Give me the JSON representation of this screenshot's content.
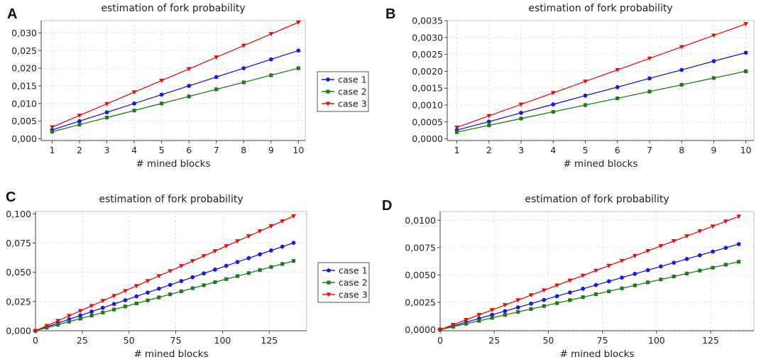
{
  "panels": [
    "A",
    "B",
    "C",
    "D"
  ],
  "legend": {
    "labels": [
      "case 1",
      "case 2",
      "case 3"
    ]
  },
  "colors": {
    "case 1": "#1a1ad8",
    "case 2": "#1f7a1f",
    "case 3": "#e01010",
    "grid": "#d9d9d9"
  },
  "chart_data": [
    {
      "panel": "A",
      "type": "line",
      "title": "estimation of fork probability",
      "xlabel": "# mined blocks",
      "ylabel": "",
      "xlim": [
        0.6,
        10.25
      ],
      "ylim": [
        -0.0005,
        0.0335
      ],
      "xticks": [
        1,
        2,
        3,
        4,
        5,
        6,
        7,
        8,
        9,
        10
      ],
      "xtick_labels": [
        "1",
        "2",
        "3",
        "4",
        "5",
        "6",
        "7",
        "8",
        "9",
        "10"
      ],
      "yticks": [
        0,
        0.005,
        0.01,
        0.015,
        0.02,
        0.025,
        0.03
      ],
      "ytick_labels": [
        "0,000",
        "0,005",
        "0,010",
        "0,015",
        "0,020",
        "0,025",
        "0,030"
      ],
      "x": [
        1,
        2,
        3,
        4,
        5,
        6,
        7,
        8,
        9,
        10
      ],
      "series": [
        {
          "name": "case 1",
          "marker": "circle",
          "values": [
            0.0025,
            0.005,
            0.0075,
            0.01,
            0.0125,
            0.015,
            0.0175,
            0.02,
            0.0225,
            0.025
          ]
        },
        {
          "name": "case 2",
          "marker": "square",
          "values": [
            0.002,
            0.004,
            0.006,
            0.008,
            0.01,
            0.012,
            0.014,
            0.016,
            0.018,
            0.02
          ]
        },
        {
          "name": "case 3",
          "marker": "triangle",
          "values": [
            0.0033,
            0.0066,
            0.0099,
            0.0132,
            0.0165,
            0.0198,
            0.0231,
            0.0264,
            0.0297,
            0.033
          ]
        }
      ],
      "show_legend": true,
      "legend_position": "right"
    },
    {
      "panel": "B",
      "type": "line",
      "title": "estimation of fork probability",
      "xlabel": "# mined blocks",
      "ylabel": "",
      "xlim": [
        0.7,
        10.25
      ],
      "ylim": [
        -5e-05,
        0.0035
      ],
      "xticks": [
        1,
        2,
        3,
        4,
        5,
        6,
        7,
        8,
        9,
        10
      ],
      "xtick_labels": [
        "1",
        "2",
        "3",
        "4",
        "5",
        "6",
        "7",
        "8",
        "9",
        "10"
      ],
      "yticks": [
        0,
        0.0005,
        0.001,
        0.0015,
        0.002,
        0.0025,
        0.003,
        0.0035
      ],
      "ytick_labels": [
        "0,0000",
        "0,0005",
        "0,0010",
        "0,0015",
        "0,0020",
        "0,0025",
        "0,0030",
        "0,0035"
      ],
      "x": [
        1,
        2,
        3,
        4,
        5,
        6,
        7,
        8,
        9,
        10
      ],
      "series": [
        {
          "name": "case 1",
          "marker": "circle",
          "values": [
            0.00026,
            0.00051,
            0.00077,
            0.00102,
            0.00128,
            0.00153,
            0.00179,
            0.00204,
            0.0023,
            0.00255
          ]
        },
        {
          "name": "case 2",
          "marker": "square",
          "values": [
            0.0002,
            0.0004,
            0.0006,
            0.0008,
            0.001,
            0.0012,
            0.0014,
            0.0016,
            0.0018,
            0.002
          ]
        },
        {
          "name": "case 3",
          "marker": "triangle",
          "values": [
            0.00034,
            0.00068,
            0.00102,
            0.00136,
            0.0017,
            0.00204,
            0.00238,
            0.00272,
            0.00306,
            0.0034
          ]
        }
      ],
      "show_legend": false
    },
    {
      "panel": "C",
      "type": "line",
      "title": "estimation of fork probability",
      "xlabel": "# mined blocks",
      "ylabel": "",
      "xlim": [
        0,
        145
      ],
      "ylim": [
        0,
        0.102
      ],
      "xticks": [
        0,
        25,
        50,
        75,
        100,
        125
      ],
      "xtick_labels": [
        "0",
        "25",
        "50",
        "75",
        "100",
        "125"
      ],
      "yticks": [
        0,
        0.025,
        0.05,
        0.075,
        0.1
      ],
      "ytick_labels": [
        "0,000",
        "0,025",
        "0,050",
        "0,075",
        "0,100"
      ],
      "x": [
        0,
        6,
        12,
        18,
        24,
        30,
        36,
        42,
        48,
        54,
        60,
        66,
        72,
        78,
        84,
        90,
        96,
        102,
        108,
        114,
        120,
        126,
        132,
        138
      ],
      "slopes": {
        "case 1": 0.000545,
        "case 2": 0.000433,
        "case 3": 0.00071
      },
      "series": [
        {
          "name": "case 1",
          "marker": "circle",
          "values": [
            0,
            0.00327,
            0.00654,
            0.00981,
            0.01308,
            0.01635,
            0.01962,
            0.02289,
            0.02616,
            0.02943,
            0.0327,
            0.03597,
            0.03924,
            0.04251,
            0.04578,
            0.04905,
            0.05232,
            0.05559,
            0.05886,
            0.06213,
            0.0654,
            0.06867,
            0.07194,
            0.07521
          ]
        },
        {
          "name": "case 2",
          "marker": "square",
          "values": [
            0,
            0.0026,
            0.0052,
            0.00779,
            0.01039,
            0.01299,
            0.01559,
            0.01819,
            0.02078,
            0.02338,
            0.02598,
            0.02858,
            0.03118,
            0.03377,
            0.03637,
            0.03897,
            0.04157,
            0.04417,
            0.04676,
            0.04936,
            0.05196,
            0.05456,
            0.05716,
            0.05975
          ]
        },
        {
          "name": "case 3",
          "marker": "triangle",
          "values": [
            0,
            0.00426,
            0.00852,
            0.01278,
            0.01704,
            0.0213,
            0.02556,
            0.02982,
            0.03408,
            0.03834,
            0.0426,
            0.04686,
            0.05112,
            0.05538,
            0.05964,
            0.0639,
            0.06816,
            0.07242,
            0.07668,
            0.08094,
            0.0852,
            0.08946,
            0.09372,
            0.09798
          ]
        }
      ],
      "show_legend": true,
      "legend_position": "right"
    },
    {
      "panel": "D",
      "type": "line",
      "title": "estimation of fork probability",
      "xlabel": "# mined blocks",
      "ylabel": "",
      "xlim": [
        0,
        145
      ],
      "ylim": [
        -0.0001,
        0.0108
      ],
      "xticks": [
        0,
        25,
        50,
        75,
        100,
        125
      ],
      "xtick_labels": [
        "0",
        "25",
        "50",
        "75",
        "100",
        "125"
      ],
      "yticks": [
        0,
        0.0025,
        0.005,
        0.0075,
        0.01
      ],
      "ytick_labels": [
        "0,0000",
        "0,0025",
        "0,0050",
        "0,0075",
        "0,0100"
      ],
      "x": [
        0,
        6,
        12,
        18,
        24,
        30,
        36,
        42,
        48,
        54,
        60,
        66,
        72,
        78,
        84,
        90,
        96,
        102,
        108,
        114,
        120,
        126,
        132,
        138
      ],
      "series": [
        {
          "name": "case 1",
          "marker": "circle",
          "values": [
            0,
            0.00034,
            0.00068,
            0.00102,
            0.00136,
            0.0017,
            0.00204,
            0.00238,
            0.00272,
            0.00306,
            0.0034,
            0.00374,
            0.00408,
            0.00442,
            0.00476,
            0.0051,
            0.00544,
            0.00578,
            0.00612,
            0.00646,
            0.0068,
            0.00714,
            0.00748,
            0.00782
          ]
        },
        {
          "name": "case 2",
          "marker": "square",
          "values": [
            0,
            0.00027,
            0.00054,
            0.00081,
            0.00108,
            0.00135,
            0.00162,
            0.00189,
            0.00216,
            0.00243,
            0.0027,
            0.00297,
            0.00324,
            0.00351,
            0.00378,
            0.00405,
            0.00432,
            0.00459,
            0.00486,
            0.00513,
            0.0054,
            0.00567,
            0.00594,
            0.00621
          ]
        },
        {
          "name": "case 3",
          "marker": "triangle",
          "values": [
            0,
            0.00045,
            0.0009,
            0.00135,
            0.0018,
            0.00225,
            0.0027,
            0.00315,
            0.0036,
            0.00405,
            0.0045,
            0.00495,
            0.0054,
            0.00585,
            0.0063,
            0.00675,
            0.0072,
            0.00765,
            0.0081,
            0.00855,
            0.009,
            0.00945,
            0.0099,
            0.01035
          ]
        }
      ],
      "show_legend": false
    }
  ]
}
